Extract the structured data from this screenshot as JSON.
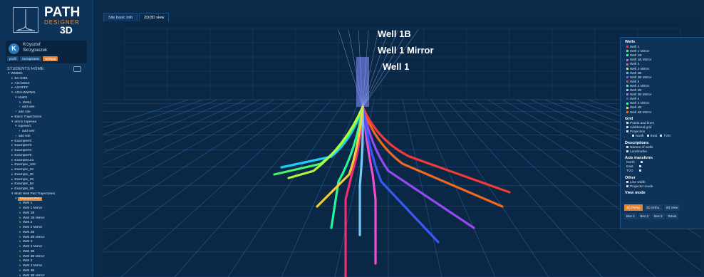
{
  "app": {
    "logo": {
      "title": "PATH",
      "subtitle": "DESIGNER",
      "suffix": "3D"
    },
    "user": {
      "initial": "K",
      "first_name": "Krzysztof",
      "last_name": "Skrzypaszek"
    },
    "user_actions": [
      "profil",
      "zarządzanie",
      "wyloguj"
    ]
  },
  "tree": {
    "title": "STUDENTS HOME",
    "rows": [
      {
        "text": "WMMG",
        "glyph": "▾",
        "indent": 1
      },
      {
        "text": "BA-9401",
        "glyph": "▸",
        "indent": 2
      },
      {
        "text": "AGH2022",
        "glyph": "▸",
        "indent": 2
      },
      {
        "text": "AGHFFF",
        "glyph": "▸",
        "indent": 2
      },
      {
        "text": "AGH-WWNiG",
        "glyph": "▾",
        "indent": 2
      },
      {
        "text": "shaft1",
        "glyph": "▾",
        "indent": 3
      },
      {
        "text": "Well1",
        "glyph": "↳",
        "indent": 4
      },
      {
        "text": "add well",
        "glyph": "+",
        "indent": 4
      },
      {
        "text": "add site",
        "glyph": "+",
        "indent": 3
      },
      {
        "text": "Basic Trajectories",
        "glyph": "▸",
        "indent": 2
      },
      {
        "text": "demo ropesea",
        "glyph": "▾",
        "indent": 2
      },
      {
        "text": "ropesect",
        "glyph": "▾",
        "indent": 3
      },
      {
        "text": "add well",
        "glyph": "+",
        "indent": 4
      },
      {
        "text": "add site",
        "glyph": "+",
        "indent": 3
      },
      {
        "text": "Example#2",
        "glyph": "▸",
        "indent": 2
      },
      {
        "text": "Example#3",
        "glyph": "▸",
        "indent": 2
      },
      {
        "text": "Example#4",
        "glyph": "▸",
        "indent": 2
      },
      {
        "text": "Example#5",
        "glyph": "▸",
        "indent": 2
      },
      {
        "text": "Example123",
        "glyph": "▸",
        "indent": 2
      },
      {
        "text": "Example_100",
        "glyph": "▸",
        "indent": 2
      },
      {
        "text": "Example_20",
        "glyph": "▸",
        "indent": 2
      },
      {
        "text": "Example_30",
        "glyph": "▸",
        "indent": 2
      },
      {
        "text": "Example_33",
        "glyph": "▸",
        "indent": 2
      },
      {
        "text": "Example_50",
        "glyph": "▸",
        "indent": 2
      },
      {
        "text": "Example_99",
        "glyph": "▸",
        "indent": 2
      },
      {
        "text": "Multi Well Pad Trajectories",
        "glyph": "▾",
        "indent": 2
      },
      {
        "text": "Standard Pad",
        "glyph": "▾",
        "indent": 3,
        "selected": true
      },
      {
        "text": "Well 1",
        "glyph": "↳",
        "indent": 4,
        "well": true
      },
      {
        "text": "Well 1 Mirror",
        "glyph": "↳",
        "indent": 4,
        "well": true
      },
      {
        "text": "Well 1B",
        "glyph": "↳",
        "indent": 4,
        "well": true
      },
      {
        "text": "Well 1B Mirror",
        "glyph": "↳",
        "indent": 4,
        "well": true
      },
      {
        "text": "Well 2",
        "glyph": "↳",
        "indent": 4,
        "well": true
      },
      {
        "text": "Well 2 Mirror",
        "glyph": "↳",
        "indent": 4,
        "well": true
      },
      {
        "text": "Well 2B",
        "glyph": "↳",
        "indent": 4,
        "well": true
      },
      {
        "text": "Well 2B Mirror",
        "glyph": "↳",
        "indent": 4,
        "well": true
      },
      {
        "text": "Well 3",
        "glyph": "↳",
        "indent": 4,
        "well": true
      },
      {
        "text": "Well 3 Mirror",
        "glyph": "↳",
        "indent": 4,
        "well": true
      },
      {
        "text": "Well 3B",
        "glyph": "↳",
        "indent": 4,
        "well": true
      },
      {
        "text": "Well 3B Mirror",
        "glyph": "↳",
        "indent": 4,
        "well": true
      },
      {
        "text": "Well 4",
        "glyph": "↳",
        "indent": 4,
        "well": true
      },
      {
        "text": "Well 4 Mirror",
        "glyph": "↳",
        "indent": 4,
        "well": true
      },
      {
        "text": "Well 4B",
        "glyph": "↳",
        "indent": 4,
        "well": true
      },
      {
        "text": "Well 4B Mirror",
        "glyph": "↳",
        "indent": 4,
        "well": true
      }
    ]
  },
  "tabs": [
    "Site basic info",
    "2D/3D view"
  ],
  "active_tab": "2D/3D view",
  "viewport": {
    "labels": [
      "Well 1B",
      "Well 1 Mirror",
      "Well 1"
    ],
    "grid_color": "#2e5f8f",
    "wells": [
      {
        "color": "#ff2d7a"
      },
      {
        "color": "#ff4fd8"
      },
      {
        "color": "#ff6a1f"
      },
      {
        "color": "#ff3b3b"
      },
      {
        "color": "#9d4bff"
      },
      {
        "color": "#3c5bff"
      },
      {
        "color": "#1fd6ff"
      },
      {
        "color": "#4cff6a"
      },
      {
        "color": "#b6ff3a"
      },
      {
        "color": "#2bff9e"
      },
      {
        "color": "#7dd3ff"
      },
      {
        "color": "#ffd23a"
      }
    ]
  },
  "panel": {
    "wells_title": "Wells",
    "wells": [
      {
        "name": "Well 1",
        "color": "#ff2d7a"
      },
      {
        "name": "Well 1 Mirror",
        "color": "#4cff6a"
      },
      {
        "name": "Well 1B",
        "color": "#2bff9e"
      },
      {
        "name": "Well 1B Mirror",
        "color": "#ff4fd8"
      },
      {
        "name": "Well 2",
        "color": "#ff6a1f"
      },
      {
        "name": "Well 2 Mirror",
        "color": "#b6ff3a"
      },
      {
        "name": "Well 2B",
        "color": "#1fd6ff"
      },
      {
        "name": "Well 2B Mirror",
        "color": "#9d4bff"
      },
      {
        "name": "Well 3",
        "color": "#ff3b3b"
      },
      {
        "name": "Well 3 Mirror",
        "color": "#4cff6a"
      },
      {
        "name": "Well 3B",
        "color": "#7dd3ff"
      },
      {
        "name": "Well 3B Mirror",
        "color": "#ff4fd8"
      },
      {
        "name": "Well 4",
        "color": "#3c5bff"
      },
      {
        "name": "Well 4 Mirror",
        "color": "#2bff9e"
      },
      {
        "name": "Well 4B",
        "color": "#ffd23a"
      },
      {
        "name": "Well 4B Mirror",
        "color": "#ff6a1f"
      }
    ],
    "grid_title": "Grid",
    "grid_items": [
      "Points and lines",
      "Additional grid",
      "Projection"
    ],
    "projection_opts": [
      "North",
      "East",
      "TVD"
    ],
    "descriptions_title": "Descriptions",
    "descriptions_items": [
      "Names of wells",
      "Landmarks"
    ],
    "axis_title": "Axis transform",
    "axis_items": [
      "North",
      "East",
      "TVD"
    ],
    "other_title": "Other",
    "other_items": [
      "Line width",
      "Projector mode"
    ],
    "view_mode_title": "View mode",
    "view_modes": [
      "3D Persp.",
      "3D Ortho.",
      "2D View"
    ],
    "boxes": [
      "Box 1",
      "Box 2",
      "Box 3",
      "Reset"
    ]
  }
}
